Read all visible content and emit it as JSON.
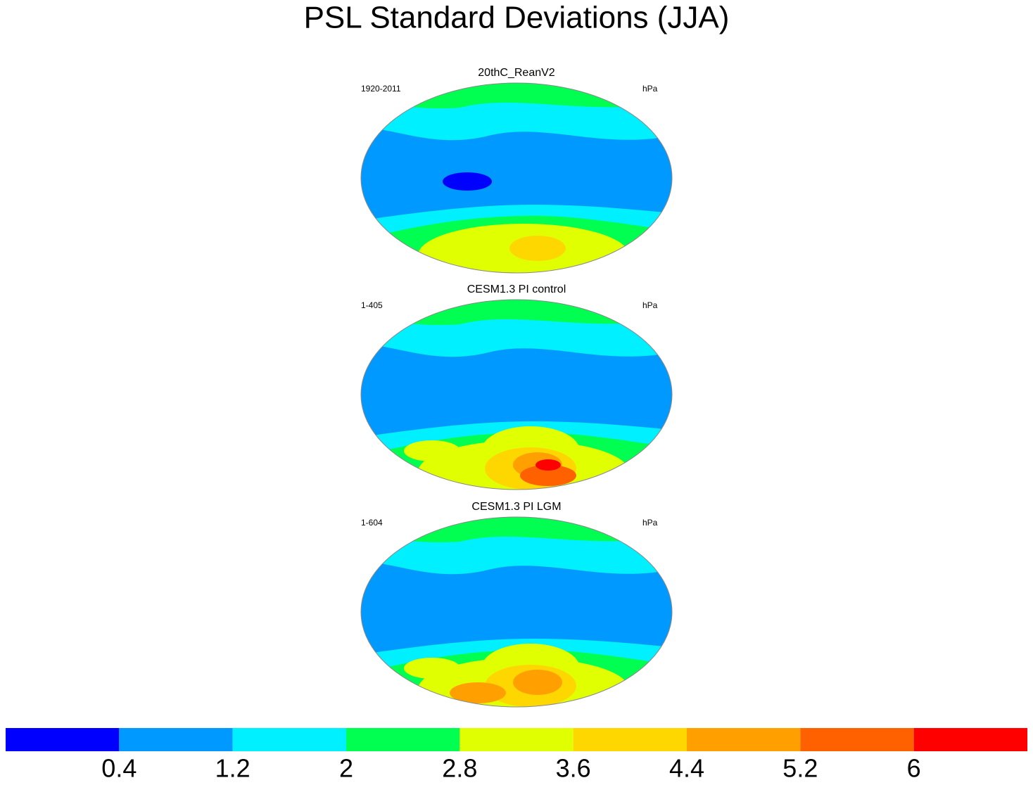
{
  "title": "PSL Standard Deviations (JJA)",
  "panels": [
    {
      "title": "20thC_ReanV2",
      "period": "1920-2011",
      "units": "hPa"
    },
    {
      "title": "CESM1.3 PI control",
      "period": "1-405",
      "units": "hPa"
    },
    {
      "title": "CESM1.3 PI LGM",
      "period": "1-604",
      "units": "hPa"
    }
  ],
  "colorbar": {
    "levels": [
      0.4,
      1.2,
      2,
      2.8,
      3.6,
      4.4,
      5.2,
      6
    ],
    "colors": [
      "#0000ff",
      "#0099ff",
      "#00f0ff",
      "#00ff50",
      "#e0ff00",
      "#ffd700",
      "#ffa000",
      "#ff6000",
      "#ff0000"
    ]
  }
}
